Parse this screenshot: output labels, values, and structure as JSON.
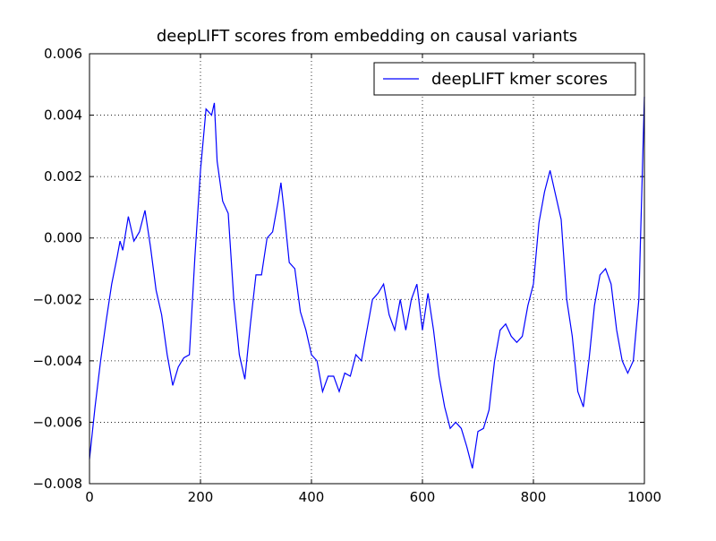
{
  "chart_data": {
    "type": "line",
    "title": "deepLIFT scores from embedding on causal variants",
    "x": [
      0,
      10,
      20,
      30,
      40,
      50,
      55,
      60,
      70,
      80,
      90,
      100,
      110,
      120,
      130,
      140,
      150,
      160,
      170,
      180,
      190,
      200,
      210,
      220,
      225,
      230,
      240,
      250,
      260,
      270,
      280,
      290,
      300,
      310,
      320,
      330,
      340,
      345,
      350,
      360,
      370,
      380,
      390,
      400,
      410,
      420,
      430,
      440,
      450,
      460,
      470,
      480,
      490,
      500,
      510,
      520,
      530,
      540,
      550,
      560,
      570,
      580,
      590,
      600,
      610,
      620,
      630,
      640,
      650,
      660,
      670,
      680,
      690,
      700,
      710,
      720,
      730,
      740,
      750,
      760,
      770,
      780,
      790,
      800,
      810,
      820,
      830,
      840,
      850,
      860,
      870,
      880,
      890,
      900,
      910,
      920,
      930,
      940,
      950,
      960,
      970,
      980,
      990,
      1000
    ],
    "series": [
      {
        "name": "deepLIFT kmer scores",
        "color": "#0000ff",
        "values": [
          -0.0072,
          -0.0055,
          -0.004,
          -0.0027,
          -0.0015,
          -0.0006,
          -0.0001,
          -0.0004,
          0.0007,
          -0.0001,
          0.0002,
          0.0009,
          -0.0003,
          -0.0017,
          -0.0025,
          -0.0038,
          -0.0048,
          -0.0042,
          -0.0039,
          -0.0038,
          -0.0006,
          0.0022,
          0.0042,
          0.004,
          0.0044,
          0.0025,
          0.0012,
          0.0008,
          -0.002,
          -0.0038,
          -0.0046,
          -0.0028,
          -0.0012,
          -0.0012,
          0.0,
          0.0002,
          0.0012,
          0.0018,
          0.001,
          -0.0008,
          -0.001,
          -0.0024,
          -0.003,
          -0.0038,
          -0.004,
          -0.005,
          -0.0045,
          -0.0045,
          -0.005,
          -0.0044,
          -0.0045,
          -0.0038,
          -0.004,
          -0.003,
          -0.002,
          -0.0018,
          -0.0015,
          -0.0025,
          -0.003,
          -0.002,
          -0.003,
          -0.002,
          -0.0015,
          -0.003,
          -0.0018,
          -0.003,
          -0.0045,
          -0.0055,
          -0.0062,
          -0.006,
          -0.0062,
          -0.0068,
          -0.0075,
          -0.0063,
          -0.0062,
          -0.0056,
          -0.004,
          -0.003,
          -0.0028,
          -0.0032,
          -0.0034,
          -0.0032,
          -0.0022,
          -0.0015,
          0.0005,
          0.0015,
          0.0022,
          0.0014,
          0.0006,
          -0.002,
          -0.0032,
          -0.005,
          -0.0055,
          -0.004,
          -0.0022,
          -0.0012,
          -0.001,
          -0.0015,
          -0.003,
          -0.004,
          -0.0044,
          -0.004,
          -0.002,
          0.0046
        ]
      }
    ],
    "xlim": [
      0,
      1000
    ],
    "xticks": [
      0,
      200,
      400,
      600,
      800,
      1000
    ],
    "ylim": [
      -0.008,
      0.006
    ],
    "yticks": [
      {
        "value": -0.008,
        "label": "−0.008"
      },
      {
        "value": -0.006,
        "label": "−0.006"
      },
      {
        "value": -0.004,
        "label": "−0.004"
      },
      {
        "value": -0.002,
        "label": "−0.002"
      },
      {
        "value": 0,
        "label": "0.000"
      },
      0.002,
      0.004,
      0.006
    ],
    "grid": true,
    "legend": "upper-right"
  }
}
